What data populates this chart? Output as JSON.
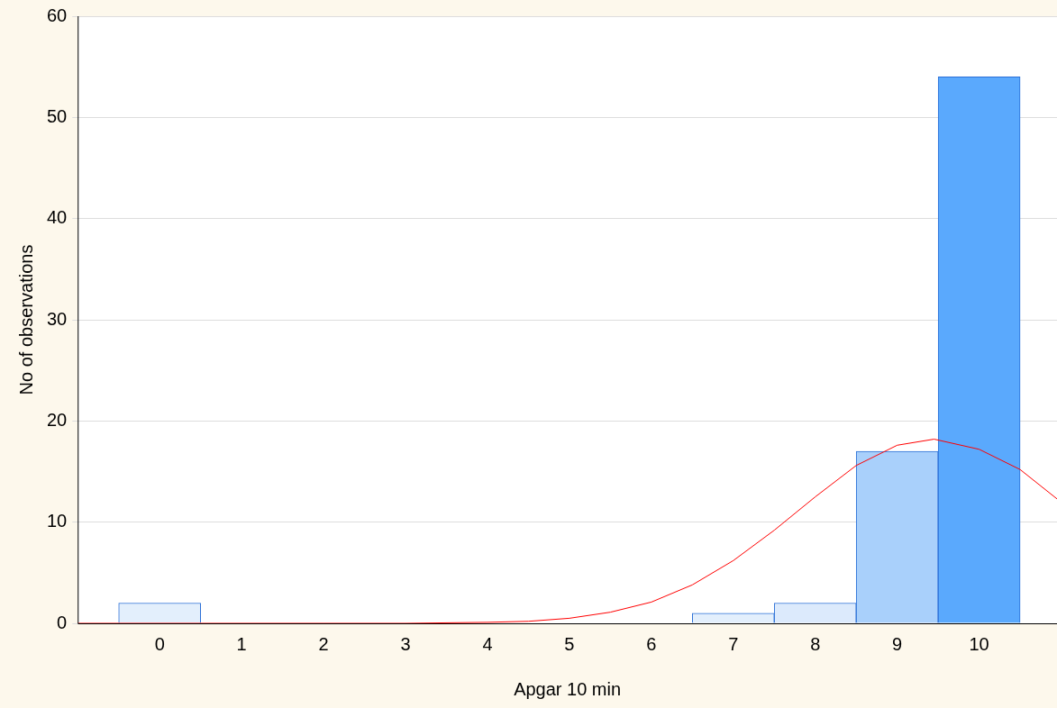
{
  "chart_data": {
    "type": "histogram",
    "xlabel": "Apgar 10 min",
    "ylabel": "No of observations",
    "bins": [
      -0.5,
      0.5,
      1.5,
      2.5,
      3.5,
      4.5,
      5.5,
      6.5,
      7.5,
      8.5,
      9.5,
      10.5
    ],
    "values": [
      2,
      0,
      0,
      0,
      0,
      0,
      0,
      1,
      2,
      17,
      54
    ],
    "colors": [
      "#e3effc",
      "#e3effc",
      "#e3effc",
      "#e3effc",
      "#e3effc",
      "#e3effc",
      "#e3effc",
      "#e3effc",
      "#dceafc",
      "#a9d0fb",
      "#5aa9fd"
    ],
    "series": [
      {
        "type": "line",
        "color": "#ff0000",
        "x": [
          -1,
          2,
          3,
          4,
          4.5,
          5,
          5.5,
          6,
          6.5,
          7,
          7.5,
          8,
          8.5,
          9,
          9.45,
          10,
          10.5,
          10.95
        ],
        "values": [
          0,
          0,
          0,
          0.1,
          0.2,
          0.5,
          1.1,
          2.1,
          3.8,
          6.2,
          9.2,
          12.5,
          15.6,
          17.6,
          18.2,
          17.2,
          15.2,
          12.3
        ]
      }
    ],
    "xlim": [
      -1,
      10.95
    ],
    "xticks": [
      0,
      1,
      2,
      3,
      4,
      5,
      6,
      7,
      8,
      9,
      10
    ],
    "ylim": [
      0,
      60
    ],
    "yticks": [
      0,
      10,
      20,
      30,
      40,
      50,
      60
    ],
    "grid": "y",
    "legend": false,
    "marker": "none",
    "line_style": "solid"
  }
}
